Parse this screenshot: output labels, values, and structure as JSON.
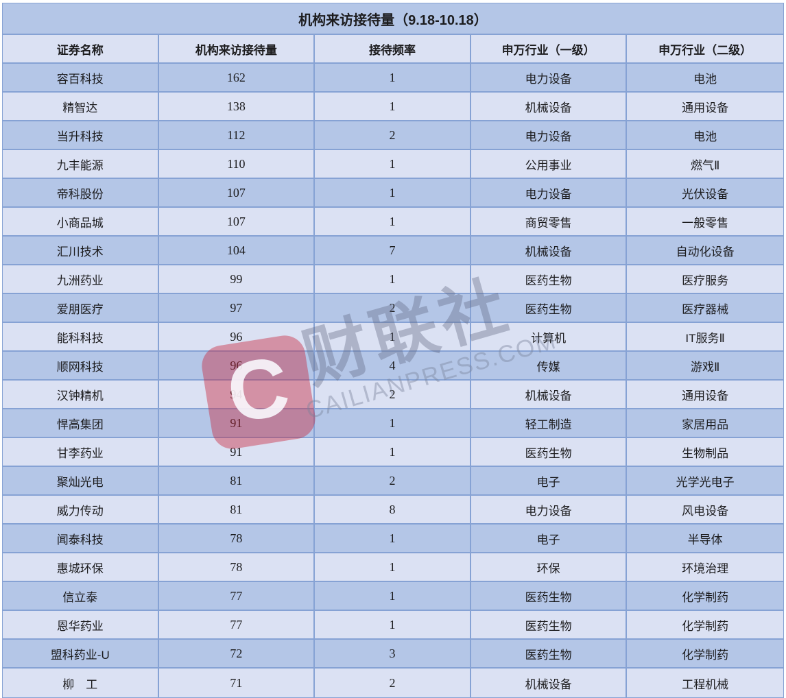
{
  "title": "机构来访接待量（9.18-10.18）",
  "columns": [
    "证券名称",
    "机构来访接待量",
    "接待频率",
    "申万行业（一级）",
    "申万行业（二级）"
  ],
  "rows": [
    {
      "name": "容百科技",
      "visits": "162",
      "frequency": "1",
      "industry_l1": "电力设备",
      "industry_l2": "电池"
    },
    {
      "name": "精智达",
      "visits": "138",
      "frequency": "1",
      "industry_l1": "机械设备",
      "industry_l2": "通用设备"
    },
    {
      "name": "当升科技",
      "visits": "112",
      "frequency": "2",
      "industry_l1": "电力设备",
      "industry_l2": "电池"
    },
    {
      "name": "九丰能源",
      "visits": "110",
      "frequency": "1",
      "industry_l1": "公用事业",
      "industry_l2": "燃气Ⅱ"
    },
    {
      "name": "帝科股份",
      "visits": "107",
      "frequency": "1",
      "industry_l1": "电力设备",
      "industry_l2": "光伏设备"
    },
    {
      "name": "小商品城",
      "visits": "107",
      "frequency": "1",
      "industry_l1": "商贸零售",
      "industry_l2": "一般零售"
    },
    {
      "name": "汇川技术",
      "visits": "104",
      "frequency": "7",
      "industry_l1": "机械设备",
      "industry_l2": "自动化设备"
    },
    {
      "name": "九洲药业",
      "visits": "99",
      "frequency": "1",
      "industry_l1": "医药生物",
      "industry_l2": "医疗服务"
    },
    {
      "name": "爱朋医疗",
      "visits": "97",
      "frequency": "2",
      "industry_l1": "医药生物",
      "industry_l2": "医疗器械"
    },
    {
      "name": "能科科技",
      "visits": "96",
      "frequency": "1",
      "industry_l1": "计算机",
      "industry_l2": "IT服务Ⅱ"
    },
    {
      "name": "顺网科技",
      "visits": "96",
      "frequency": "4",
      "industry_l1": "传媒",
      "industry_l2": "游戏Ⅱ"
    },
    {
      "name": "汉钟精机",
      "visits": "94",
      "frequency": "2",
      "industry_l1": "机械设备",
      "industry_l2": "通用设备"
    },
    {
      "name": "悍高集团",
      "visits": "91",
      "frequency": "1",
      "industry_l1": "轻工制造",
      "industry_l2": "家居用品"
    },
    {
      "name": "甘李药业",
      "visits": "91",
      "frequency": "1",
      "industry_l1": "医药生物",
      "industry_l2": "生物制品"
    },
    {
      "name": "聚灿光电",
      "visits": "81",
      "frequency": "2",
      "industry_l1": "电子",
      "industry_l2": "光学光电子"
    },
    {
      "name": "威力传动",
      "visits": "81",
      "frequency": "8",
      "industry_l1": "电力设备",
      "industry_l2": "风电设备"
    },
    {
      "name": "闻泰科技",
      "visits": "78",
      "frequency": "1",
      "industry_l1": "电子",
      "industry_l2": "半导体"
    },
    {
      "name": "惠城环保",
      "visits": "78",
      "frequency": "1",
      "industry_l1": "环保",
      "industry_l2": "环境治理"
    },
    {
      "name": "信立泰",
      "visits": "77",
      "frequency": "1",
      "industry_l1": "医药生物",
      "industry_l2": "化学制药"
    },
    {
      "name": "恩华药业",
      "visits": "77",
      "frequency": "1",
      "industry_l1": "医药生物",
      "industry_l2": "化学制药"
    },
    {
      "name": "盟科药业-U",
      "visits": "72",
      "frequency": "3",
      "industry_l1": "医药生物",
      "industry_l2": "化学制药"
    },
    {
      "name": "柳　工",
      "visits": "71",
      "frequency": "2",
      "industry_l1": "机械设备",
      "industry_l2": "工程机械"
    }
  ],
  "watermark": {
    "logo_letter": "C",
    "brand_cn": "财联社",
    "brand_en": "CAILIANPRESS.COM"
  },
  "colors": {
    "row-dark": "#b4c6e7",
    "row-light": "#dbe1f3",
    "border": "#86a2d4",
    "text": "#1c1c1e"
  }
}
